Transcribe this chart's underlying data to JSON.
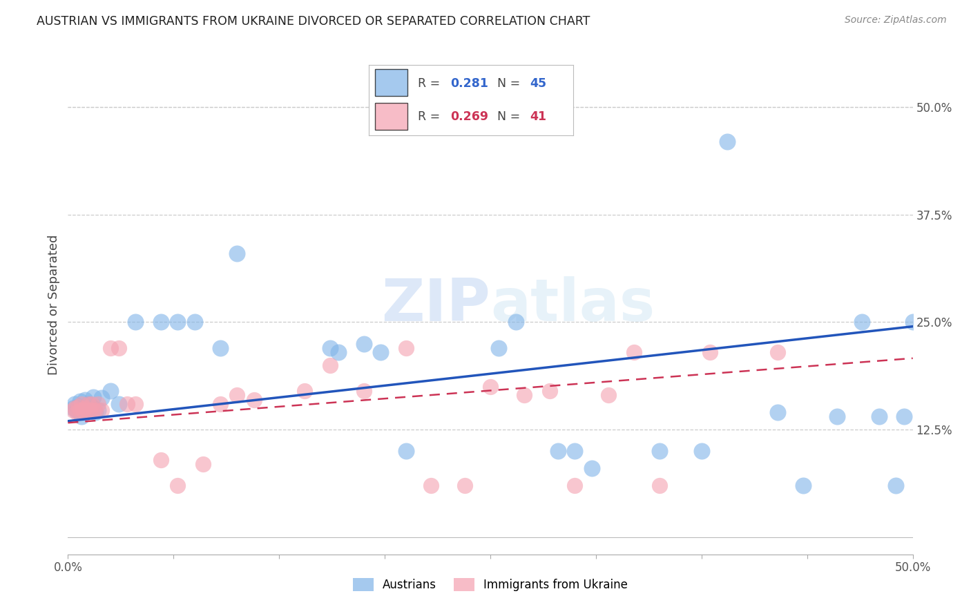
{
  "title": "AUSTRIAN VS IMMIGRANTS FROM UKRAINE DIVORCED OR SEPARATED CORRELATION CHART",
  "source": "Source: ZipAtlas.com",
  "ylabel": "Divorced or Separated",
  "xlim": [
    0.0,
    0.5
  ],
  "ylim": [
    -0.02,
    0.56
  ],
  "background_color": "#ffffff",
  "blue_color": "#7fb3e8",
  "pink_color": "#f4a0b0",
  "trendline_blue": "#2255bb",
  "trendline_pink": "#cc3355",
  "austrians_x": [
    0.003,
    0.004,
    0.005,
    0.006,
    0.007,
    0.008,
    0.009,
    0.01,
    0.011,
    0.012,
    0.013,
    0.014,
    0.015,
    0.016,
    0.017,
    0.018,
    0.019,
    0.02,
    0.022,
    0.024,
    0.026,
    0.03,
    0.035,
    0.04,
    0.06,
    0.08,
    0.09,
    0.11,
    0.14,
    0.155,
    0.16,
    0.175,
    0.19,
    0.2,
    0.25,
    0.28,
    0.29,
    0.3,
    0.36,
    0.38,
    0.395,
    0.42,
    0.45,
    0.47,
    0.5
  ],
  "austrians_y": [
    0.15,
    0.155,
    0.148,
    0.152,
    0.158,
    0.14,
    0.145,
    0.16,
    0.15,
    0.155,
    0.148,
    0.152,
    0.163,
    0.145,
    0.15,
    0.148,
    0.155,
    0.162,
    0.175,
    0.155,
    0.25,
    0.165,
    0.22,
    0.25,
    0.25,
    0.25,
    0.22,
    0.33,
    0.1,
    0.215,
    0.215,
    0.22,
    0.225,
    0.1,
    0.215,
    0.1,
    0.08,
    0.1,
    0.1,
    0.46,
    0.1,
    0.145,
    0.06,
    0.14,
    0.25
  ],
  "ukraine_x": [
    0.003,
    0.004,
    0.005,
    0.006,
    0.007,
    0.008,
    0.009,
    0.01,
    0.011,
    0.012,
    0.013,
    0.014,
    0.015,
    0.016,
    0.018,
    0.02,
    0.022,
    0.025,
    0.028,
    0.03,
    0.035,
    0.04,
    0.045,
    0.05,
    0.06,
    0.065,
    0.075,
    0.09,
    0.1,
    0.11,
    0.14,
    0.155,
    0.17,
    0.2,
    0.215,
    0.235,
    0.25,
    0.28,
    0.3,
    0.32,
    0.35
  ],
  "ukraine_y": [
    0.148,
    0.15,
    0.145,
    0.152,
    0.148,
    0.155,
    0.148,
    0.15,
    0.148,
    0.155,
    0.148,
    0.155,
    0.148,
    0.148,
    0.155,
    0.148,
    0.148,
    0.22,
    0.22,
    0.155,
    0.148,
    0.155,
    0.148,
    0.09,
    0.09,
    0.06,
    0.25,
    0.085,
    0.155,
    0.165,
    0.165,
    0.2,
    0.17,
    0.22,
    0.148,
    0.06,
    0.175,
    0.17,
    0.06,
    0.165,
    0.215
  ]
}
